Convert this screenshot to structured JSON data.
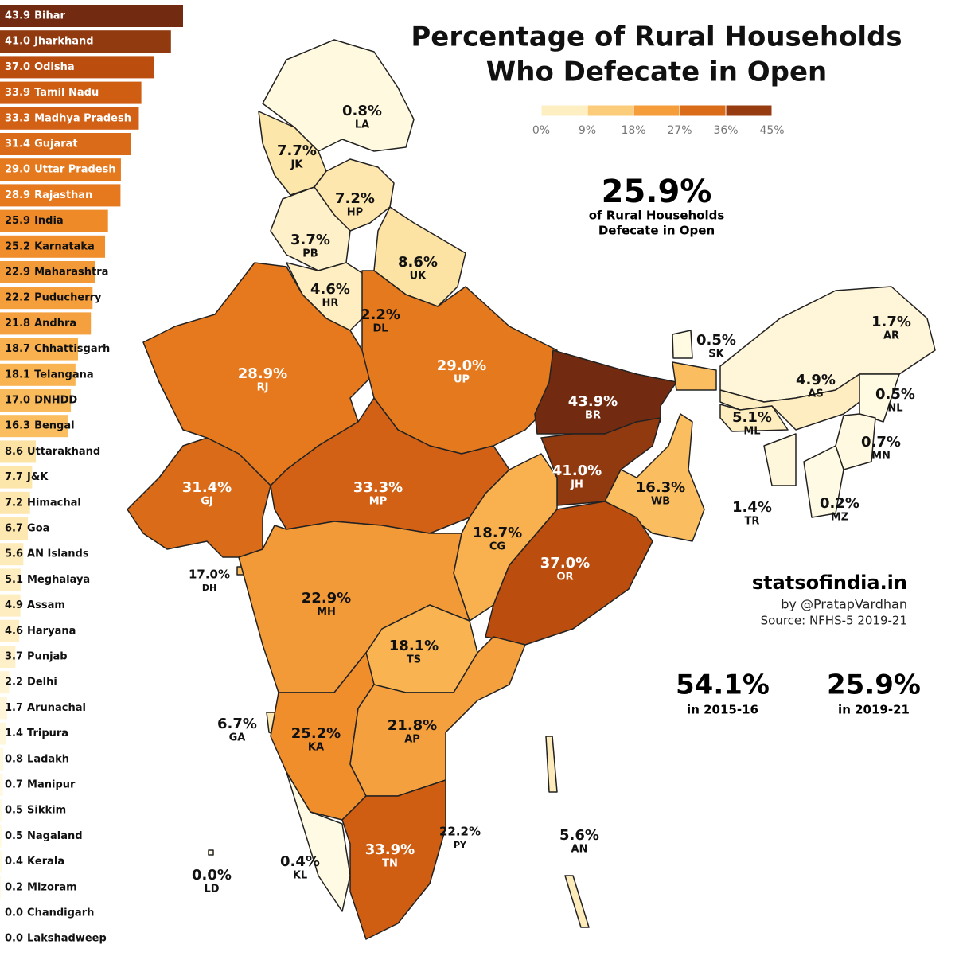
{
  "chart_data": [
    {
      "type": "bar",
      "categories": [
        "Bihar",
        "Jharkhand",
        "Odisha",
        "Tamil Nadu",
        "Madhya Pradesh",
        "Gujarat",
        "Uttar Pradesh",
        "Rajasthan",
        "India",
        "Karnataka",
        "Maharashtra",
        "Puducherry",
        "Andhra",
        "Chhattisgarh",
        "Telangana",
        "DNHDD",
        "Bengal",
        "Uttarakhand",
        "J&K",
        "Himachal",
        "Goa",
        "AN Islands",
        "Meghalaya",
        "Assam",
        "Haryana",
        "Punjab",
        "Delhi",
        "Arunachal",
        "Tripura",
        "Ladakh",
        "Manipur",
        "Sikkim",
        "Nagaland",
        "Kerala",
        "Mizoram",
        "Chandigarh",
        "Lakshadweep"
      ],
      "values": [
        43.9,
        41.0,
        37.0,
        33.9,
        33.3,
        31.4,
        29.0,
        28.9,
        25.9,
        25.2,
        22.9,
        22.2,
        21.8,
        18.7,
        18.1,
        17.0,
        16.3,
        8.6,
        7.7,
        7.2,
        6.7,
        5.6,
        5.1,
        4.9,
        4.6,
        3.7,
        2.2,
        1.7,
        1.4,
        0.8,
        0.7,
        0.5,
        0.5,
        0.4,
        0.2,
        0.0,
        0.0
      ],
      "value_labels": [
        "43.9",
        "41.0",
        "37.0",
        "33.9",
        "33.3",
        "31.4",
        "29.0",
        "28.9",
        "25.9",
        "25.2",
        "22.9",
        "22.2",
        "21.8",
        "18.7",
        "18.1",
        "17.0",
        "16.3",
        "8.6",
        "7.7",
        "7.2",
        "6.7",
        "5.6",
        "5.1",
        "4.9",
        "4.6",
        "3.7",
        "2.2",
        "1.7",
        "1.4",
        "0.8",
        "0.7",
        "0.5",
        "0.5",
        "0.4",
        "0.2",
        "0.0",
        "0.0"
      ]
    },
    {
      "type": "choropleth",
      "title": [
        "Percentage of Rural Households",
        "Who Defecate in Open"
      ],
      "regions": [
        "LA",
        "JK",
        "HP",
        "PB",
        "UK",
        "HR",
        "DL",
        "RJ",
        "UP",
        "BR",
        "SK",
        "AR",
        "AS",
        "NL",
        "ML",
        "MN",
        "TR",
        "MZ",
        "JH",
        "WB",
        "GJ",
        "MP",
        "CG",
        "OR",
        "DH",
        "MH",
        "TS",
        "GA",
        "KA",
        "AP",
        "PY",
        "AN",
        "TN",
        "KL",
        "LD"
      ],
      "values": [
        0.8,
        7.7,
        7.2,
        3.7,
        8.6,
        4.6,
        2.2,
        28.9,
        29.0,
        43.9,
        0.5,
        1.7,
        4.9,
        0.5,
        5.1,
        0.7,
        1.4,
        0.2,
        41.0,
        16.3,
        31.4,
        33.3,
        18.7,
        37.0,
        17.0,
        22.9,
        18.1,
        6.7,
        25.2,
        21.8,
        22.2,
        5.6,
        33.9,
        0.4,
        0.0
      ],
      "value_labels": [
        "0.8%",
        "7.7%",
        "7.2%",
        "3.7%",
        "8.6%",
        "4.6%",
        "2.2%",
        "28.9%",
        "29.0%",
        "43.9%",
        "0.5%",
        "1.7%",
        "4.9%",
        "0.5%",
        "5.1%",
        "0.7%",
        "1.4%",
        "0.2%",
        "41.0%",
        "16.3%",
        "31.4%",
        "33.3%",
        "18.7%",
        "37.0%",
        "17.0%",
        "22.9%",
        "18.1%",
        "6.7%",
        "25.2%",
        "21.8%",
        "22.2%",
        "5.6%",
        "33.9%",
        "0.4%",
        "0.0%"
      ],
      "legend": {
        "ticks": [
          {
            "value": 0,
            "label": "0%"
          },
          {
            "value": 9,
            "label": "9%"
          },
          {
            "value": 18,
            "label": "18%"
          },
          {
            "value": 27,
            "label": "27%"
          },
          {
            "value": 36,
            "label": "36%"
          },
          {
            "value": 45,
            "label": "45%"
          }
        ],
        "colors": [
          "#fffbe6",
          "#fde2a0",
          "#f9b552",
          "#ee8422",
          "#c6520f",
          "#662610"
        ]
      },
      "headline": {
        "value": "25.9%",
        "text": [
          "of Rural Households",
          "Defecate in Open"
        ]
      },
      "credits": [
        "statsofindia.in",
        "by @PratapVardhan",
        "Source: NFHS-5 2019-21"
      ],
      "comparison": [
        {
          "value": "54.1%",
          "label": "in 2015-16"
        },
        {
          "value": "25.9%",
          "label": "in 2019-21"
        }
      ]
    }
  ]
}
